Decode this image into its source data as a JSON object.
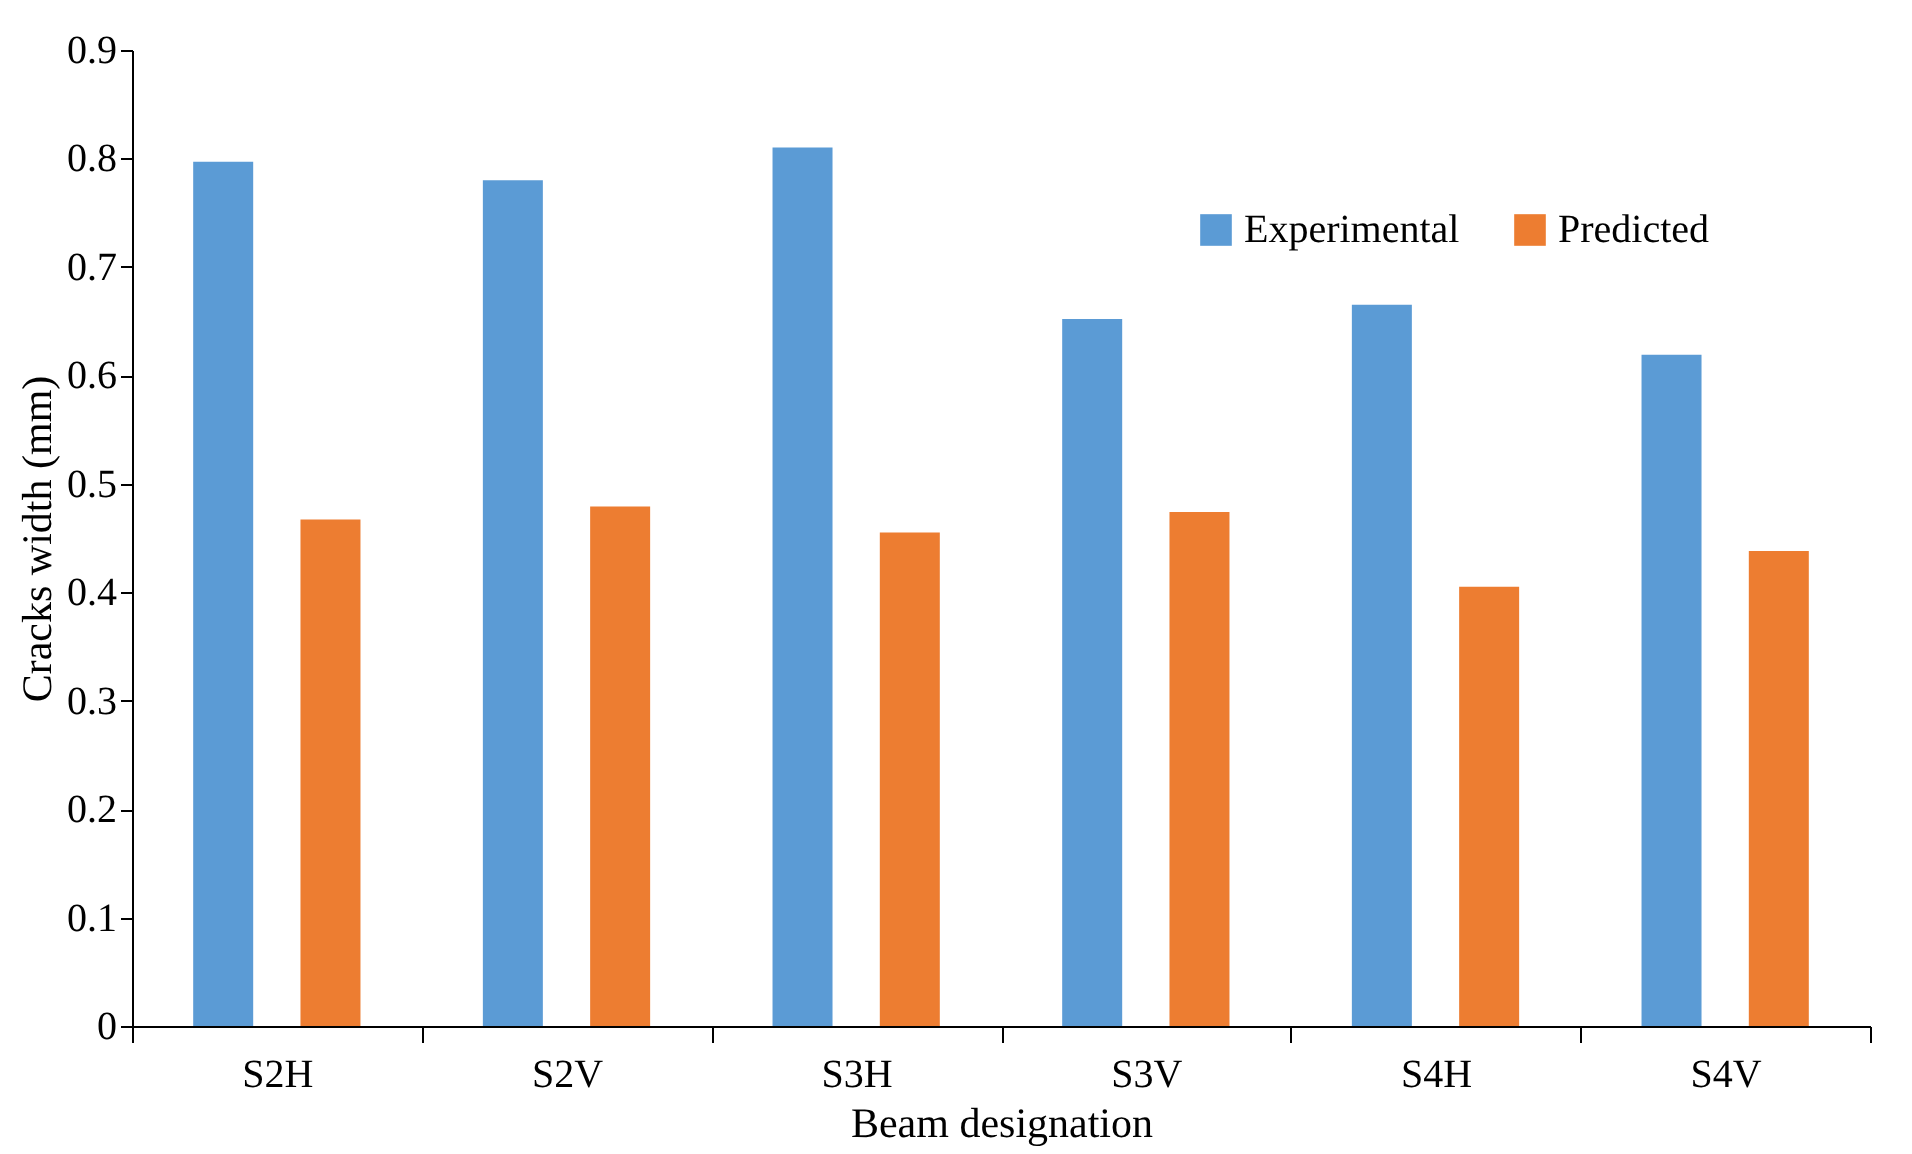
{
  "chart_data": {
    "type": "bar",
    "xlabel": "Beam designation",
    "ylabel": "Cracks width (mm)",
    "categories": [
      "S2H",
      "S2V",
      "S3H",
      "S3V",
      "S4H",
      "S4V"
    ],
    "series": [
      {
        "name": "Experimental",
        "color": "#5b9bd5",
        "values": [
          0.797,
          0.78,
          0.81,
          0.652,
          0.665,
          0.619
        ]
      },
      {
        "name": "Predicted",
        "color": "#ed7d31",
        "values": [
          0.467,
          0.479,
          0.455,
          0.474,
          0.405,
          0.438
        ]
      }
    ],
    "ylim": [
      0,
      0.9
    ],
    "yticks": [
      0,
      0.1,
      0.2,
      0.3,
      0.4,
      0.5,
      0.6,
      0.7,
      0.8,
      0.9
    ],
    "grid": false,
    "legend": "top right"
  }
}
